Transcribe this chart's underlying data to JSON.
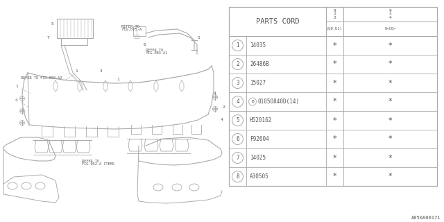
{
  "figure_code": "A050A00171",
  "bg_color": "#ffffff",
  "line_color": "#aaaaaa",
  "text_color": "#555555",
  "table": {
    "header": "PARTS CORD",
    "rows": [
      {
        "num": "1",
        "part": "14035"
      },
      {
        "num": "2",
        "part": "26486B"
      },
      {
        "num": "3",
        "part": "15027"
      },
      {
        "num": "4",
        "part": "01050840D(14)",
        "circled_b": true
      },
      {
        "num": "5",
        "part": "H520162"
      },
      {
        "num": "6",
        "part": "F92604"
      },
      {
        "num": "7",
        "part": "14025"
      },
      {
        "num": "8",
        "part": "A30505"
      }
    ]
  }
}
